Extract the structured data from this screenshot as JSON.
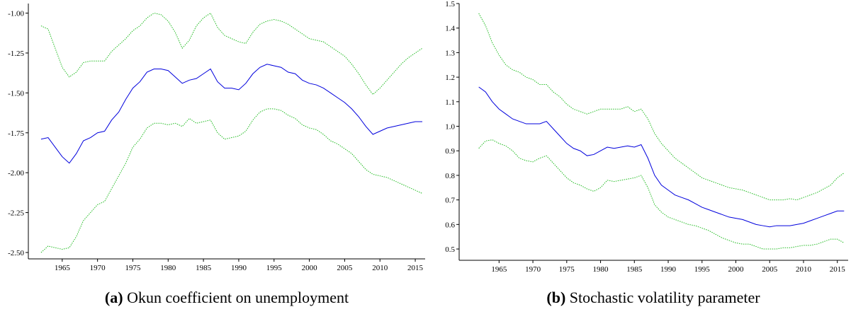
{
  "chart_data": [
    {
      "type": "line",
      "caption_label": "(a)",
      "caption": "Okun coefficient on unemployment",
      "x": [
        1962,
        1963,
        1964,
        1965,
        1966,
        1967,
        1968,
        1969,
        1970,
        1971,
        1972,
        1973,
        1974,
        1975,
        1976,
        1977,
        1978,
        1979,
        1980,
        1981,
        1982,
        1983,
        1984,
        1985,
        1986,
        1987,
        1988,
        1989,
        1990,
        1991,
        1992,
        1993,
        1994,
        1995,
        1996,
        1997,
        1998,
        1999,
        2000,
        2001,
        2002,
        2003,
        2004,
        2005,
        2006,
        2007,
        2008,
        2009,
        2010,
        2011,
        2012,
        2013,
        2014,
        2015,
        2016
      ],
      "series": [
        {
          "color": "#0000dd",
          "style": "solid",
          "values": [
            -1.79,
            -1.78,
            -1.84,
            -1.9,
            -1.94,
            -1.88,
            -1.8,
            -1.78,
            -1.75,
            -1.74,
            -1.67,
            -1.62,
            -1.54,
            -1.47,
            -1.43,
            -1.37,
            -1.35,
            -1.35,
            -1.36,
            -1.4,
            -1.44,
            -1.42,
            -1.41,
            -1.38,
            -1.35,
            -1.43,
            -1.47,
            -1.47,
            -1.48,
            -1.44,
            -1.38,
            -1.34,
            -1.32,
            -1.33,
            -1.34,
            -1.37,
            -1.38,
            -1.42,
            -1.44,
            -1.45,
            -1.47,
            -1.5,
            -1.53,
            -1.56,
            -1.6,
            -1.65,
            -1.71,
            -1.76,
            -1.74,
            -1.72,
            -1.71,
            -1.7,
            -1.69,
            -1.68,
            -1.68
          ]
        },
        {
          "color": "#22bb22",
          "style": "dotted",
          "values": [
            -1.08,
            -1.1,
            -1.22,
            -1.34,
            -1.4,
            -1.37,
            -1.31,
            -1.3,
            -1.3,
            -1.3,
            -1.24,
            -1.2,
            -1.16,
            -1.11,
            -1.08,
            -1.03,
            -1.0,
            -1.01,
            -1.05,
            -1.12,
            -1.22,
            -1.17,
            -1.08,
            -1.03,
            -1.0,
            -1.09,
            -1.14,
            -1.16,
            -1.18,
            -1.19,
            -1.12,
            -1.07,
            -1.05,
            -1.04,
            -1.05,
            -1.07,
            -1.1,
            -1.13,
            -1.16,
            -1.17,
            -1.18,
            -1.21,
            -1.24,
            -1.27,
            -1.32,
            -1.38,
            -1.45,
            -1.51,
            -1.47,
            -1.42,
            -1.37,
            -1.32,
            -1.28,
            -1.25,
            -1.22
          ]
        },
        {
          "color": "#22bb22",
          "style": "dotted",
          "values": [
            -2.5,
            -2.46,
            -2.47,
            -2.48,
            -2.47,
            -2.4,
            -2.3,
            -2.25,
            -2.2,
            -2.18,
            -2.1,
            -2.02,
            -1.94,
            -1.84,
            -1.79,
            -1.72,
            -1.69,
            -1.69,
            -1.7,
            -1.69,
            -1.71,
            -1.66,
            -1.69,
            -1.68,
            -1.67,
            -1.75,
            -1.79,
            -1.78,
            -1.77,
            -1.74,
            -1.67,
            -1.62,
            -1.6,
            -1.6,
            -1.61,
            -1.64,
            -1.66,
            -1.7,
            -1.72,
            -1.73,
            -1.76,
            -1.8,
            -1.82,
            -1.85,
            -1.88,
            -1.93,
            -1.98,
            -2.01,
            -2.02,
            -2.03,
            -2.05,
            -2.07,
            -2.09,
            -2.11,
            -2.13
          ]
        }
      ],
      "xlim": [
        1960.2,
        2016.4
      ],
      "xticks": [
        1965,
        1970,
        1975,
        1980,
        1985,
        1990,
        1995,
        2000,
        2005,
        2010,
        2015
      ],
      "ylim": [
        -2.54,
        -0.94
      ],
      "yticks": [
        {
          "value": -2.5,
          "label": "-2.50"
        },
        {
          "value": -2.25,
          "label": "-2.25"
        },
        {
          "value": -2,
          "label": "-2.00"
        },
        {
          "value": -1.75,
          "label": "-1.75"
        },
        {
          "value": -1.5,
          "label": "-1.50"
        },
        {
          "value": -1.25,
          "label": "-1.25"
        },
        {
          "value": -1,
          "label": "-1.00"
        }
      ]
    },
    {
      "type": "line",
      "caption_label": "(b)",
      "caption": "Stochastic volatility parameter",
      "x": [
        1962,
        1963,
        1964,
        1965,
        1966,
        1967,
        1968,
        1969,
        1970,
        1971,
        1972,
        1973,
        1974,
        1975,
        1976,
        1977,
        1978,
        1979,
        1980,
        1981,
        1982,
        1983,
        1984,
        1985,
        1986,
        1987,
        1988,
        1989,
        1990,
        1991,
        1992,
        1993,
        1994,
        1995,
        1996,
        1997,
        1998,
        1999,
        2000,
        2001,
        2002,
        2003,
        2004,
        2005,
        2006,
        2007,
        2008,
        2009,
        2010,
        2011,
        2012,
        2013,
        2014,
        2015,
        2016
      ],
      "series": [
        {
          "color": "#0000dd",
          "style": "solid",
          "values": [
            1.16,
            1.14,
            1.1,
            1.07,
            1.05,
            1.03,
            1.02,
            1.01,
            1.01,
            1.01,
            1.02,
            0.99,
            0.96,
            0.93,
            0.91,
            0.9,
            0.88,
            0.885,
            0.9,
            0.915,
            0.91,
            0.915,
            0.92,
            0.915,
            0.925,
            0.87,
            0.8,
            0.76,
            0.74,
            0.72,
            0.71,
            0.7,
            0.685,
            0.67,
            0.66,
            0.65,
            0.64,
            0.63,
            0.625,
            0.62,
            0.61,
            0.6,
            0.595,
            0.59,
            0.595,
            0.595,
            0.595,
            0.6,
            0.605,
            0.615,
            0.625,
            0.635,
            0.645,
            0.655,
            0.655
          ]
        },
        {
          "color": "#22bb22",
          "style": "dotted",
          "values": [
            1.46,
            1.41,
            1.34,
            1.29,
            1.25,
            1.23,
            1.22,
            1.2,
            1.19,
            1.17,
            1.17,
            1.14,
            1.12,
            1.09,
            1.07,
            1.06,
            1.05,
            1.06,
            1.07,
            1.07,
            1.07,
            1.07,
            1.08,
            1.06,
            1.07,
            1.03,
            0.97,
            0.93,
            0.9,
            0.87,
            0.85,
            0.83,
            0.81,
            0.79,
            0.78,
            0.77,
            0.76,
            0.75,
            0.745,
            0.74,
            0.73,
            0.72,
            0.71,
            0.7,
            0.7,
            0.7,
            0.705,
            0.7,
            0.71,
            0.72,
            0.73,
            0.745,
            0.76,
            0.79,
            0.81
          ]
        },
        {
          "color": "#22bb22",
          "style": "dotted",
          "values": [
            0.91,
            0.94,
            0.945,
            0.93,
            0.92,
            0.9,
            0.87,
            0.86,
            0.855,
            0.87,
            0.88,
            0.85,
            0.82,
            0.79,
            0.77,
            0.76,
            0.745,
            0.735,
            0.75,
            0.78,
            0.775,
            0.78,
            0.785,
            0.79,
            0.8,
            0.75,
            0.68,
            0.65,
            0.63,
            0.62,
            0.61,
            0.6,
            0.595,
            0.585,
            0.575,
            0.56,
            0.545,
            0.535,
            0.525,
            0.52,
            0.52,
            0.51,
            0.5,
            0.5,
            0.5,
            0.505,
            0.505,
            0.51,
            0.515,
            0.515,
            0.52,
            0.53,
            0.54,
            0.54,
            0.525
          ]
        }
      ],
      "xlim": [
        1959.1,
        2016.6
      ],
      "xticks": [
        1965,
        1970,
        1975,
        1980,
        1985,
        1990,
        1995,
        2000,
        2005,
        2010,
        2015
      ],
      "ylim": [
        0.454,
        1.5
      ],
      "yticks": [
        0.5,
        0.6,
        0.7,
        0.8,
        0.9,
        {
          "value": 1,
          "label": "1.0"
        },
        1.1,
        1.2,
        1.3,
        1.4,
        1.5
      ]
    }
  ]
}
